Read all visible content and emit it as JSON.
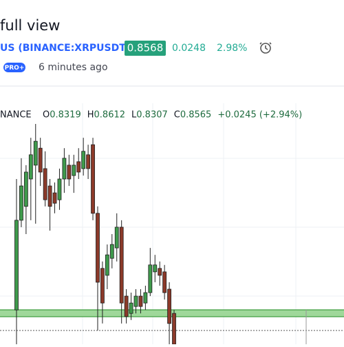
{
  "header": {
    "title": "full view",
    "symbol": "US (BINANCE:XRPUSDT)",
    "price": "0.8568",
    "change": "0.0248",
    "change_percent": "2.98%",
    "badge": "PRO+",
    "updated": "6 minutes ago"
  },
  "legend": {
    "exchange": "NANCE",
    "items": [
      {
        "label": "O",
        "value": "0.8319"
      },
      {
        "label": "H",
        "value": "0.8612"
      },
      {
        "label": "L",
        "value": "0.8307"
      },
      {
        "label": "C",
        "value": "0.8565"
      }
    ],
    "change": "+0.0245 (+2.94%)"
  },
  "chart_data": {
    "type": "candlestick",
    "categories": [
      null,
      null,
      null,
      null,
      null,
      null,
      null,
      null,
      null,
      null,
      null,
      null,
      null,
      null,
      null,
      null,
      null,
      null,
      null,
      null,
      null,
      null,
      null,
      null,
      null,
      null,
      null,
      null,
      null,
      null,
      null,
      null,
      null,
      null
    ],
    "open": [
      0.8109,
      0.8394,
      0.8438,
      0.8525,
      0.8569,
      0.8623,
      0.8558,
      0.8503,
      0.8481,
      0.8459,
      0.8525,
      0.8569,
      0.8536,
      0.858,
      0.8558,
      0.8602,
      0.8634,
      0.8416,
      0.8241,
      0.8219,
      0.8273,
      0.8306,
      0.8372,
      0.8153,
      0.8098,
      0.812,
      0.8153,
      0.8131,
      0.8164,
      0.823,
      0.8241,
      0.823,
      0.8175,
      0.8098
    ],
    "high": [
      0.8525,
      0.8591,
      0.8569,
      0.8656,
      0.87,
      0.8656,
      0.8613,
      0.8525,
      0.8514,
      0.8558,
      0.8623,
      0.8602,
      0.8602,
      0.8623,
      0.8656,
      0.8634,
      0.8656,
      0.8438,
      0.8263,
      0.8317,
      0.835,
      0.8416,
      0.8394,
      0.8175,
      0.8164,
      0.8175,
      0.8175,
      0.8186,
      0.8306,
      0.8284,
      0.8263,
      0.8252,
      0.8197,
      0.8109
    ],
    "low": [
      0.8,
      0.8372,
      0.835,
      0.8394,
      0.8383,
      0.8503,
      0.8438,
      0.8361,
      0.8416,
      0.8427,
      0.8481,
      0.8503,
      0.8481,
      0.8525,
      0.8536,
      0.8525,
      0.8394,
      0.8044,
      0.8066,
      0.8175,
      0.8241,
      0.8263,
      0.8066,
      0.8066,
      0.8077,
      0.8098,
      0.8098,
      0.8109,
      0.8153,
      0.8197,
      0.8186,
      0.8142,
      0.8,
      0.8
    ],
    "close": [
      0.8394,
      0.8503,
      0.8547,
      0.8602,
      0.8645,
      0.8547,
      0.8459,
      0.8438,
      0.8448,
      0.8525,
      0.8591,
      0.8525,
      0.8569,
      0.8547,
      0.8613,
      0.8558,
      0.8416,
      0.8197,
      0.8131,
      0.8284,
      0.8317,
      0.8372,
      0.8131,
      0.8088,
      0.8131,
      0.8153,
      0.812,
      0.8164,
      0.8252,
      0.8252,
      0.8219,
      0.8164,
      0.8066,
      0.8
    ],
    "ylim": [
      0.8,
      0.87
    ],
    "up_color": "#3f9a4c",
    "down_color": "#8c3a2a",
    "border_color": "#1f1f1f"
  }
}
